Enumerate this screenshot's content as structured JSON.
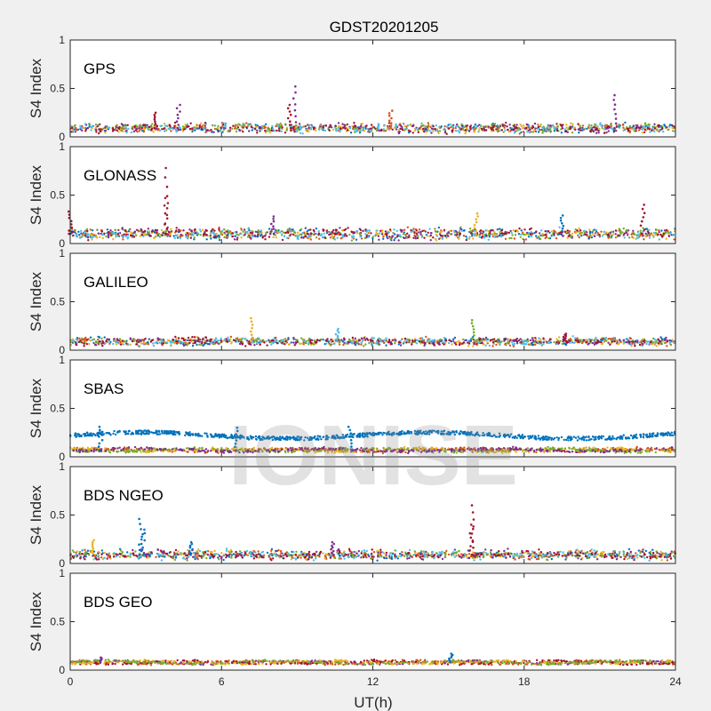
{
  "figure": {
    "title": "GDST20201205",
    "watermark": "IONISE",
    "xlabel": "UT(h)",
    "xticks": [
      "0",
      "6",
      "12",
      "18",
      "24"
    ]
  },
  "chart_data": [
    {
      "type": "scatter",
      "panel_label": "GPS",
      "ylabel": "S4 Index",
      "xlim": [
        0,
        24
      ],
      "ylim": [
        0,
        1
      ],
      "yticks": [
        "0",
        "0.5",
        "1"
      ],
      "grid": false,
      "colors": [
        "#0072BD",
        "#D95319",
        "#EDB120",
        "#7E2F8E",
        "#77AC30",
        "#4DBEEE",
        "#A2142F"
      ],
      "baseline": 0.09,
      "spread": 0.05,
      "spikes": [
        {
          "x": 8.9,
          "y": 0.52,
          "color": "#7E2F8E"
        },
        {
          "x": 8.7,
          "y": 0.33,
          "color": "#A2142F"
        },
        {
          "x": 21.6,
          "y": 0.43,
          "color": "#7E2F8E"
        },
        {
          "x": 4.3,
          "y": 0.33,
          "color": "#7E2F8E"
        },
        {
          "x": 12.7,
          "y": 0.27,
          "color": "#D95319"
        },
        {
          "x": 3.4,
          "y": 0.25,
          "color": "#A2142F"
        }
      ]
    },
    {
      "type": "scatter",
      "panel_label": "GLONASS",
      "ylabel": "S4 Index",
      "xlim": [
        0,
        24
      ],
      "ylim": [
        0,
        1
      ],
      "yticks": [
        "0",
        "0.5",
        "1"
      ],
      "grid": false,
      "colors": [
        "#0072BD",
        "#D95319",
        "#EDB120",
        "#7E2F8E",
        "#77AC30",
        "#4DBEEE",
        "#A2142F"
      ],
      "baseline": 0.1,
      "spread": 0.06,
      "spikes": [
        {
          "x": 3.8,
          "y": 0.78,
          "color": "#A2142F"
        },
        {
          "x": 3.8,
          "y": 0.47,
          "color": "#A2142F"
        },
        {
          "x": 0.0,
          "y": 0.33,
          "color": "#A2142F"
        },
        {
          "x": 16.1,
          "y": 0.31,
          "color": "#EDB120"
        },
        {
          "x": 22.7,
          "y": 0.4,
          "color": "#A2142F"
        },
        {
          "x": 8.0,
          "y": 0.28,
          "color": "#7E2F8E"
        },
        {
          "x": 19.5,
          "y": 0.29,
          "color": "#0072BD"
        }
      ]
    },
    {
      "type": "scatter",
      "panel_label": "GALILEO",
      "ylabel": "S4 Index",
      "xlim": [
        0,
        24
      ],
      "ylim": [
        0,
        1
      ],
      "yticks": [
        "0",
        "0.5",
        "1"
      ],
      "grid": false,
      "colors": [
        "#0072BD",
        "#D95319",
        "#EDB120",
        "#7E2F8E",
        "#77AC30",
        "#4DBEEE",
        "#A2142F"
      ],
      "baseline": 0.09,
      "spread": 0.04,
      "spikes": [
        {
          "x": 7.2,
          "y": 0.33,
          "color": "#EDB120"
        },
        {
          "x": 16.0,
          "y": 0.31,
          "color": "#77AC30"
        },
        {
          "x": 10.6,
          "y": 0.22,
          "color": "#4DBEEE"
        },
        {
          "x": 19.6,
          "y": 0.17,
          "color": "#A2142F"
        }
      ]
    },
    {
      "type": "scatter",
      "panel_label": "SBAS",
      "ylabel": "S4 Index",
      "xlim": [
        0,
        24
      ],
      "ylim": [
        0,
        1
      ],
      "yticks": [
        "0",
        "0.5",
        "1"
      ],
      "grid": false,
      "colors": [
        "#D95319",
        "#EDB120",
        "#77AC30",
        "#7E2F8E"
      ],
      "baseline": 0.07,
      "spread": 0.02,
      "band": {
        "color": "#0072BD",
        "level": 0.22,
        "amplitude": 0.04
      },
      "spikes": [
        {
          "x": 1.2,
          "y": 0.31,
          "color": "#0072BD"
        },
        {
          "x": 6.6,
          "y": 0.3,
          "color": "#0072BD"
        },
        {
          "x": 11.1,
          "y": 0.31,
          "color": "#0072BD"
        }
      ]
    },
    {
      "type": "scatter",
      "panel_label": "BDS NGEO",
      "ylabel": "S4 Index",
      "xlim": [
        0,
        24
      ],
      "ylim": [
        0,
        1
      ],
      "yticks": [
        "0",
        "0.5",
        "1"
      ],
      "grid": false,
      "colors": [
        "#0072BD",
        "#D95319",
        "#EDB120",
        "#7E2F8E",
        "#77AC30",
        "#4DBEEE",
        "#A2142F"
      ],
      "baseline": 0.09,
      "spread": 0.05,
      "spikes": [
        {
          "x": 2.8,
          "y": 0.46,
          "color": "#0072BD"
        },
        {
          "x": 2.9,
          "y": 0.35,
          "color": "#0072BD"
        },
        {
          "x": 16.0,
          "y": 0.6,
          "color": "#A2142F"
        },
        {
          "x": 15.9,
          "y": 0.4,
          "color": "#A2142F"
        },
        {
          "x": 0.9,
          "y": 0.24,
          "color": "#EDB120"
        },
        {
          "x": 10.4,
          "y": 0.22,
          "color": "#7E2F8E"
        },
        {
          "x": 4.8,
          "y": 0.22,
          "color": "#0072BD"
        }
      ]
    },
    {
      "type": "scatter",
      "panel_label": "BDS GEO",
      "ylabel": "S4 Index",
      "xlim": [
        0,
        24
      ],
      "ylim": [
        0,
        1
      ],
      "yticks": [
        "0",
        "0.5",
        "1"
      ],
      "grid": false,
      "colors": [
        "#7E2F8E",
        "#D95319",
        "#A2142F",
        "#EDB120",
        "#77AC30"
      ],
      "baseline": 0.08,
      "spread": 0.015,
      "spikes": [
        {
          "x": 15.1,
          "y": 0.17,
          "color": "#0072BD"
        },
        {
          "x": 1.2,
          "y": 0.13,
          "color": "#7E2F8E"
        }
      ]
    }
  ]
}
